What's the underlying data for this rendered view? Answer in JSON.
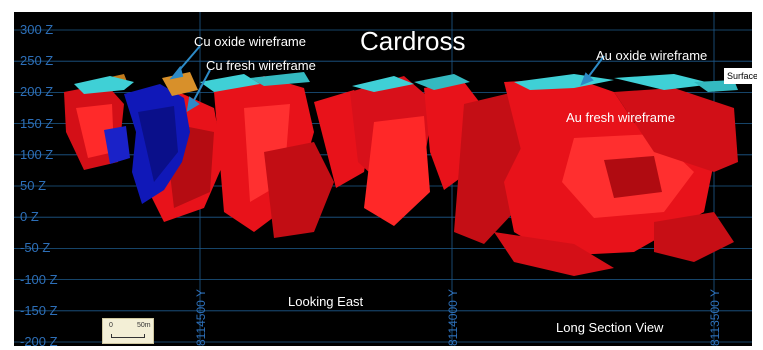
{
  "section": {
    "title": "Cardross",
    "view_label": "Long Section View",
    "direction_label": "Looking East",
    "surface_tag": "Surface"
  },
  "z_axis": {
    "labels": [
      "300 Z",
      "250 Z",
      "200 Z",
      "150 Z",
      "100 Z",
      "50 Z",
      "0 Z",
      "-50 Z",
      "-100 Z",
      "-150 Z",
      "-200 Z"
    ]
  },
  "y_axis": {
    "labels": [
      "8114500 Y",
      "8114000 Y",
      "8113500 Y"
    ]
  },
  "callouts": {
    "cu_oxide": "Cu oxide wireframe",
    "cu_fresh": "Cu fresh wireframe",
    "au_oxide": "Au oxide wireframe",
    "au_fresh": "Au fresh wireframe"
  },
  "scale_bar": {
    "start": "0",
    "end": "50m"
  },
  "colors": {
    "background": "#000000",
    "grid": "#1e5a8c",
    "label": "#2d6fb8",
    "au_fresh": "#e8121a",
    "au_oxide": "#3fd0d6",
    "cu_fresh": "#1018b8",
    "cu_oxide": "#d8902a"
  }
}
